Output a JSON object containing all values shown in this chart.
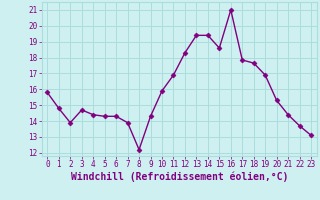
{
  "x": [
    0,
    1,
    2,
    3,
    4,
    5,
    6,
    7,
    8,
    9,
    10,
    11,
    12,
    13,
    14,
    15,
    16,
    17,
    18,
    19,
    20,
    21,
    22,
    23
  ],
  "y": [
    15.8,
    14.8,
    13.9,
    14.7,
    14.4,
    14.3,
    14.3,
    13.9,
    12.2,
    14.3,
    15.9,
    16.9,
    18.3,
    19.4,
    19.4,
    18.6,
    21.0,
    17.85,
    17.65,
    16.9,
    15.3,
    14.4,
    13.7,
    13.1
  ],
  "line_color": "#800080",
  "marker": "D",
  "marker_size": 2.5,
  "bg_color": "#cff0f0",
  "grid_color": "#aadddd",
  "xlabel": "Windchill (Refroidissement éolien,°C)",
  "xlabel_color": "#800080",
  "yticks": [
    12,
    13,
    14,
    15,
    16,
    17,
    18,
    19,
    20,
    21
  ],
  "xticks": [
    0,
    1,
    2,
    3,
    4,
    5,
    6,
    7,
    8,
    9,
    10,
    11,
    12,
    13,
    14,
    15,
    16,
    17,
    18,
    19,
    20,
    21,
    22,
    23
  ],
  "ylim": [
    11.8,
    21.5
  ],
  "xlim": [
    -0.5,
    23.5
  ],
  "tick_color": "#800080",
  "tick_fontsize": 5.5,
  "xlabel_fontsize": 7.0,
  "line_width": 1.0
}
